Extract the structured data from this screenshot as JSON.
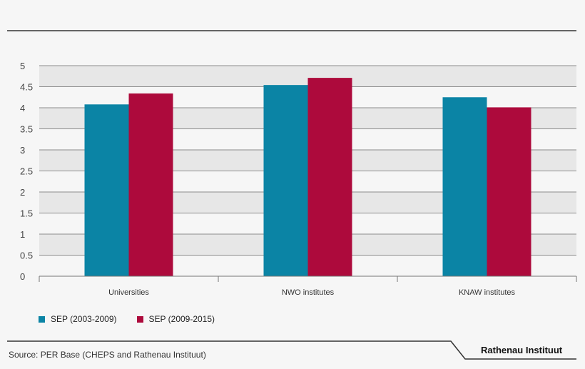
{
  "chart_data": {
    "type": "bar",
    "categories": [
      "Universities",
      "NWO institutes",
      "KNAW institutes"
    ],
    "series": [
      {
        "name": "SEP (2003-2009)",
        "color": "#0b84a5",
        "values": [
          4.08,
          4.54,
          4.25
        ]
      },
      {
        "name": "SEP (2009-2015)",
        "color": "#ad0a3c",
        "values": [
          4.34,
          4.71,
          4.01
        ]
      }
    ],
    "ylim": [
      0,
      5
    ],
    "yticks": [
      "0",
      "0.5",
      "1",
      "1.5",
      "2",
      "2.5",
      "3",
      "3.5",
      "4",
      "4.5",
      "5"
    ],
    "grid": true,
    "legend_position": "bottom-left"
  },
  "source": "Source: PER Base (CHEPS and Rathenau Instituut)",
  "brand": "Rathenau Instituut"
}
